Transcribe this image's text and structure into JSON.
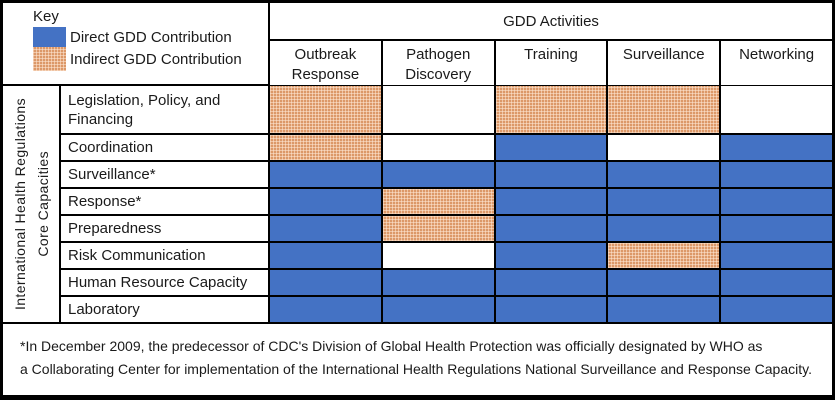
{
  "colors": {
    "direct_blue": "#4472C4",
    "indirect_orange": "#DC9868",
    "grid_border": "#000000",
    "background": "#FFFFFF"
  },
  "key": {
    "title": "Key",
    "items": [
      {
        "type": "direct",
        "label": "Direct GDD Contribution"
      },
      {
        "type": "indirect",
        "label": "Indirect GDD Contribution"
      }
    ]
  },
  "column_group": {
    "title": "GDD Activities"
  },
  "row_axis": {
    "line1": "International Health Regulations",
    "line2": "Core Capacities"
  },
  "footnote": {
    "line1": "*In December 2009, the predecessor of CDC's Division of Global Health Protection was officially designated by WHO as",
    "line2": "a Collaborating Center for implementation of the International Health Regulations National Surveillance and Response Capacity."
  },
  "chart_data": {
    "type": "heatmap",
    "title": "GDD Activities",
    "columns": [
      "Outbreak Response",
      "Pathogen Discovery",
      "Training",
      "Surveillance",
      "Networking"
    ],
    "rows": [
      "Legislation, Policy, and Financing",
      "Coordination",
      "Surveillance*",
      "Response*",
      "Preparedness",
      "Risk Communication",
      "Human Resource Capacity",
      "Laboratory"
    ],
    "legend": {
      "direct": "Direct GDD Contribution",
      "indirect": "Indirect GDD Contribution"
    },
    "values": [
      [
        "indirect",
        "none",
        "indirect",
        "indirect",
        "none"
      ],
      [
        "indirect",
        "none",
        "direct",
        "none",
        "direct"
      ],
      [
        "direct",
        "direct",
        "direct",
        "direct",
        "direct"
      ],
      [
        "direct",
        "indirect",
        "direct",
        "direct",
        "direct"
      ],
      [
        "direct",
        "indirect",
        "direct",
        "direct",
        "direct"
      ],
      [
        "direct",
        "none",
        "direct",
        "indirect",
        "direct"
      ],
      [
        "direct",
        "direct",
        "direct",
        "direct",
        "direct"
      ],
      [
        "direct",
        "direct",
        "direct",
        "direct",
        "direct"
      ]
    ]
  }
}
